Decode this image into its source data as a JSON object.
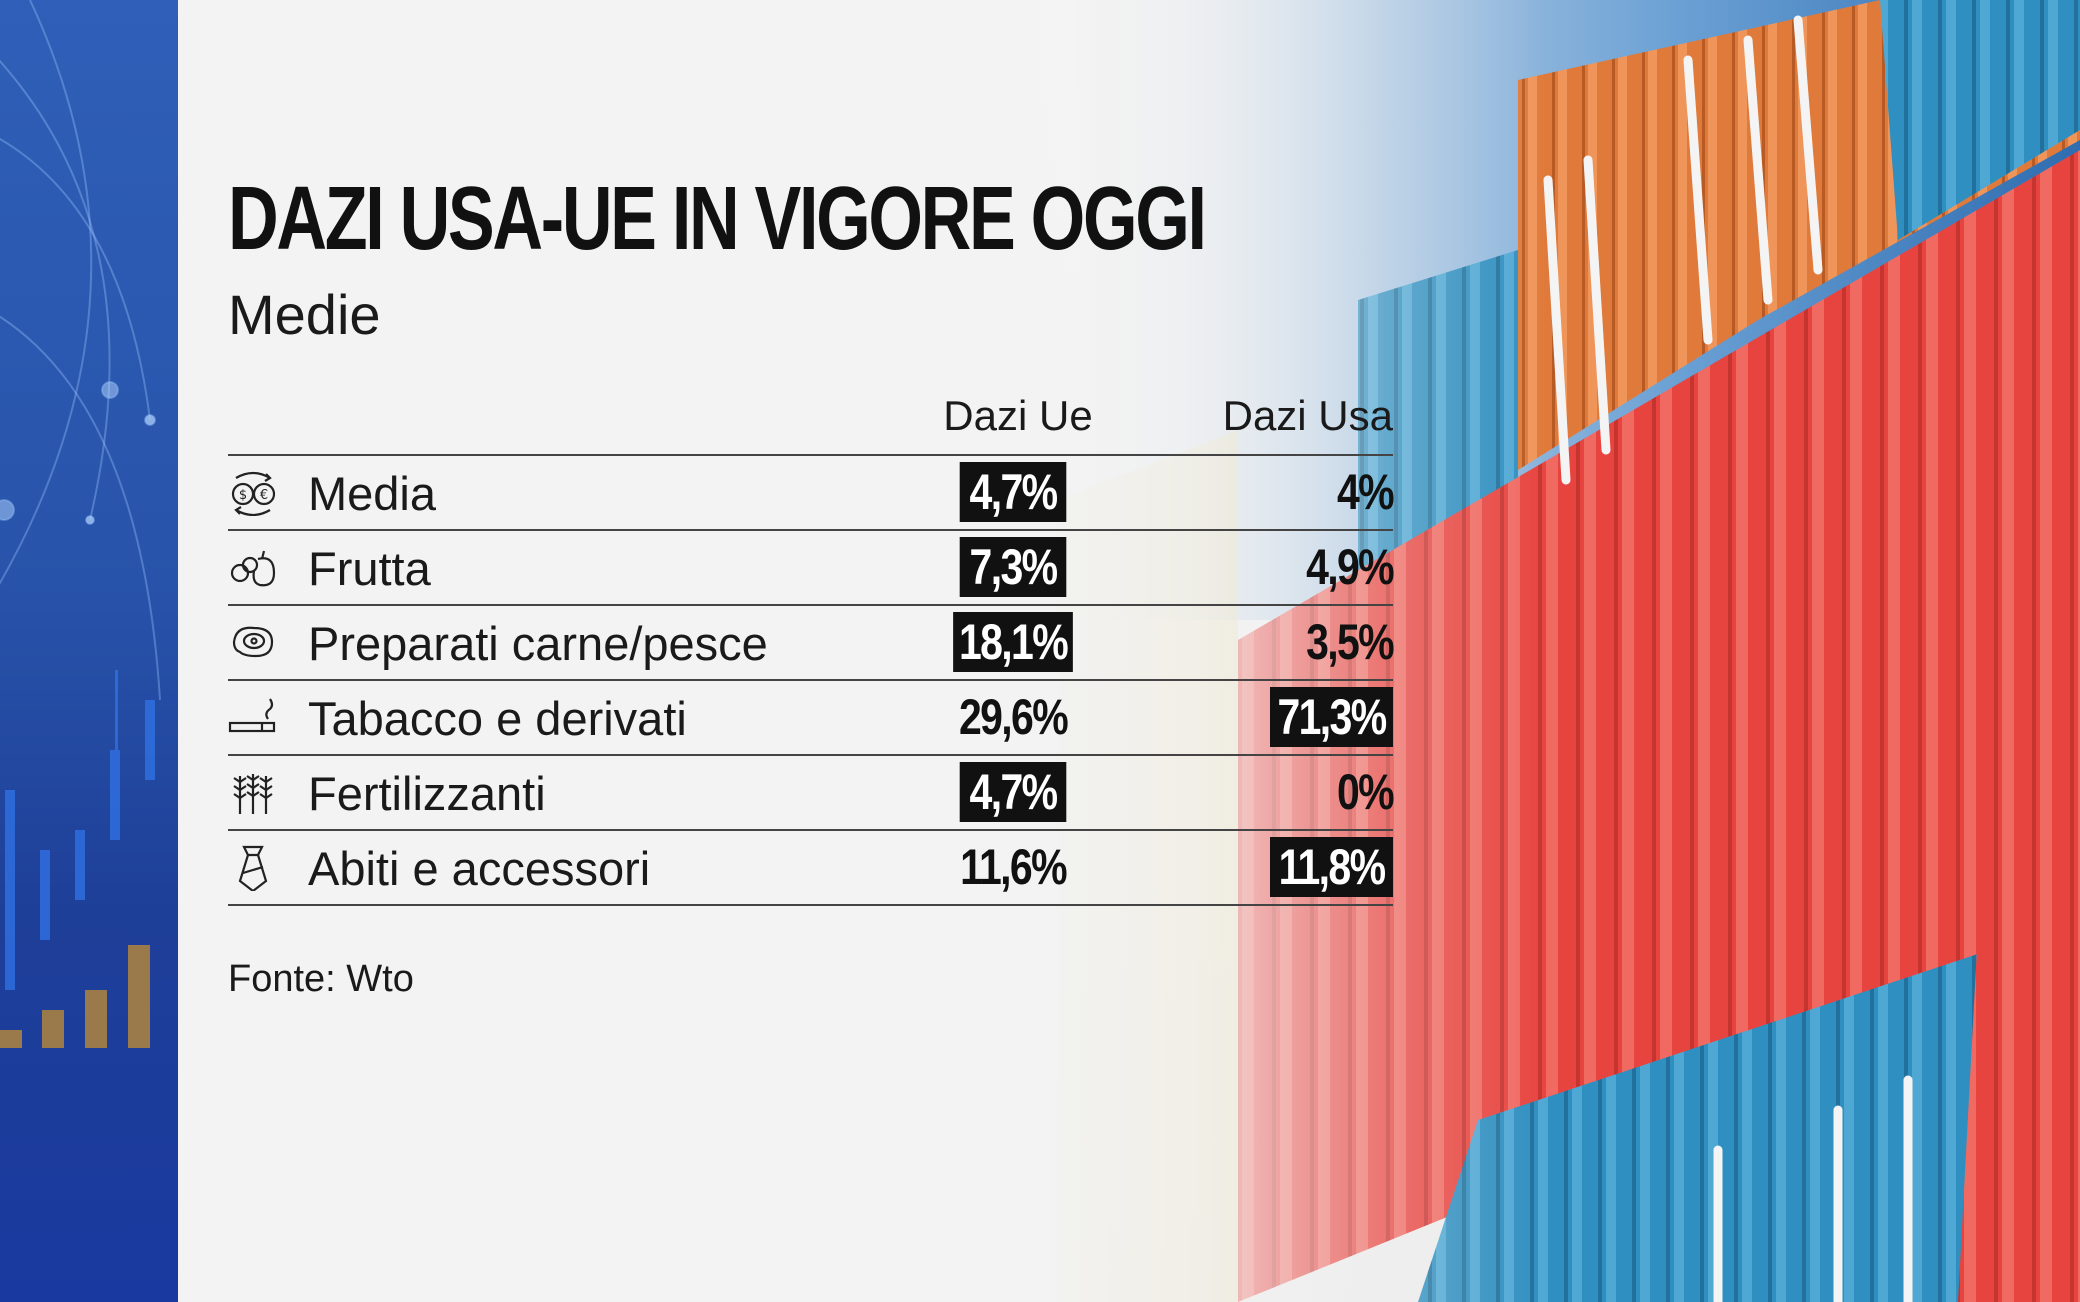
{
  "title": "DAZI USA-UE IN VIGORE OGGI",
  "subtitle": "Medie",
  "columns": {
    "ue": "Dazi Ue",
    "usa": "Dazi Usa"
  },
  "rows": [
    {
      "icon": "currency-exchange-icon",
      "label": "Media",
      "ue": "4,7%",
      "usa": "4%",
      "ue_highlight": true,
      "usa_highlight": false
    },
    {
      "icon": "fruit-icon",
      "label": "Frutta",
      "ue": "7,3%",
      "usa": "4,9%",
      "ue_highlight": true,
      "usa_highlight": false
    },
    {
      "icon": "meat-fish-icon",
      "label": "Preparati carne/pesce",
      "ue": "18,1%",
      "usa": "3,5%",
      "ue_highlight": true,
      "usa_highlight": false
    },
    {
      "icon": "cigarette-icon",
      "label": "Tabacco e derivati",
      "ue": "29,6%",
      "usa": "71,3%",
      "ue_highlight": false,
      "usa_highlight": true
    },
    {
      "icon": "wheat-icon",
      "label": "Fertilizzanti",
      "ue": "4,7%",
      "usa": "0%",
      "ue_highlight": true,
      "usa_highlight": false
    },
    {
      "icon": "tie-icon",
      "label": "Abiti e accessori",
      "ue": "11,6%",
      "usa": "11,8%",
      "ue_highlight": false,
      "usa_highlight": true
    }
  ],
  "source": "Fonte: Wto",
  "colors": {
    "highlight_bg": "#111111",
    "highlight_text": "#ffffff",
    "strip_blue": "#2853aa",
    "container_red": "#e8443f",
    "container_blue": "#2f8fc0",
    "container_orange": "#e07a3a"
  }
}
